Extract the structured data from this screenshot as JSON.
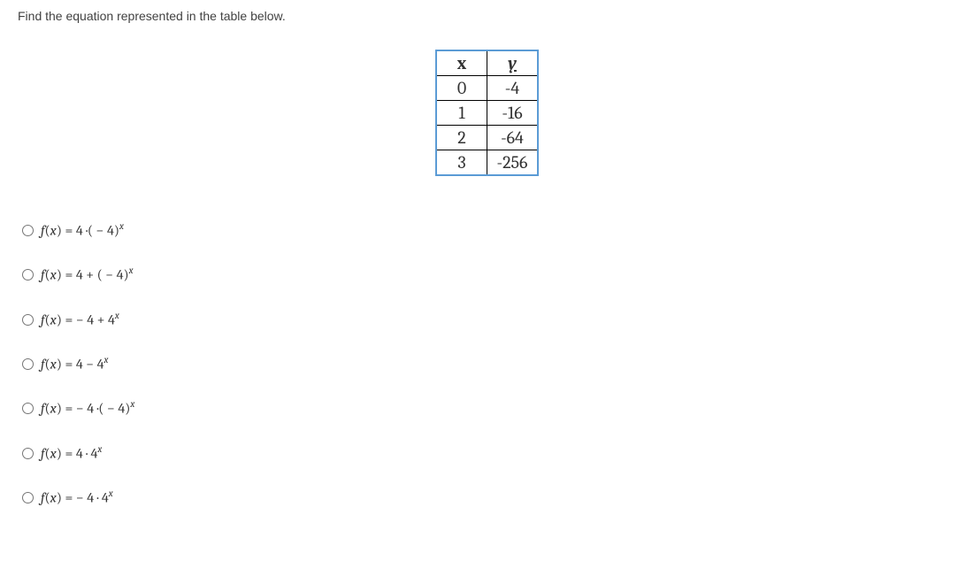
{
  "question": "Find the equation represented in the table below.",
  "table": {
    "border_color": "#5b9bd5",
    "cell_border_color": "#000000",
    "font_family": "Cambria",
    "font_size_pt": 20,
    "headers": {
      "x_label": "x",
      "y_label": "y"
    },
    "rows": [
      {
        "x": "0",
        "y": "-4"
      },
      {
        "x": "1",
        "y": "-16"
      },
      {
        "x": "2",
        "y": "-64"
      },
      {
        "x": "3",
        "y": "-256"
      }
    ]
  },
  "options": {
    "a": {
      "fn": "f",
      "arg": "x",
      "eq": "= 4 ·( − 4)",
      "exp": "x"
    },
    "b": {
      "fn": "f",
      "arg": "x",
      "eq": "= 4 + ( − 4)",
      "exp": "x"
    },
    "c": {
      "fn": "f",
      "arg": "x",
      "eq": "= − 4 + 4",
      "exp": "x"
    },
    "d": {
      "fn": "f",
      "arg": "x",
      "eq": "= 4 − 4",
      "exp": "x"
    },
    "e": {
      "fn": "f",
      "arg": "x",
      "eq": "= − 4 ·( − 4)",
      "exp": "x"
    },
    "f": {
      "fn": "f",
      "arg": "x",
      "eq": "= 4 · 4",
      "exp": "x"
    },
    "g": {
      "fn": "f",
      "arg": "x",
      "eq": "= − 4 · 4",
      "exp": "x"
    }
  }
}
